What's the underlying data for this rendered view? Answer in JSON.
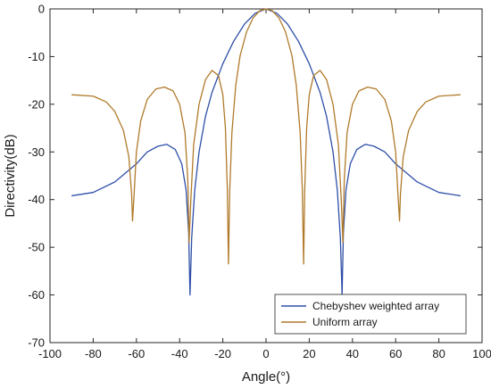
{
  "chart_data": {
    "type": "line",
    "title": "",
    "xlabel": "Angle(°)",
    "ylabel": "Directivity(dB)",
    "xlim": [
      -100,
      100
    ],
    "ylim": [
      -70,
      0
    ],
    "xticks": [
      -100,
      -80,
      -60,
      -40,
      -20,
      0,
      20,
      40,
      60,
      80,
      100
    ],
    "yticks": [
      0,
      -10,
      -20,
      -30,
      -40,
      -50,
      -60,
      -70
    ],
    "xtick_labels": [
      "-100",
      "-80",
      "-60",
      "-40",
      "-20",
      "0",
      "20",
      "40",
      "60",
      "80",
      "100"
    ],
    "ytick_labels": [
      "0",
      "-10",
      "-20",
      "-30",
      "-40",
      "-50",
      "-60",
      "-70"
    ],
    "grid": false,
    "legend_position": "bottom-right",
    "series": [
      {
        "name": "Chebyshev weighted array",
        "color": "#2e4fa8",
        "points": [
          [
            -90,
            -39.2
          ],
          [
            -80,
            -38.5
          ],
          [
            -70,
            -36.3
          ],
          [
            -60,
            -32.5
          ],
          [
            -55,
            -30.0
          ],
          [
            -50,
            -28.8
          ],
          [
            -46,
            -28.4
          ],
          [
            -42,
            -29.5
          ],
          [
            -39,
            -32.5
          ],
          [
            -37,
            -38.0
          ],
          [
            -35.8,
            -47.0
          ],
          [
            -35.2,
            -60.0
          ],
          [
            -34.4,
            -48.0
          ],
          [
            -33,
            -38.0
          ],
          [
            -31,
            -30.0
          ],
          [
            -28,
            -22.5
          ],
          [
            -25,
            -17.5
          ],
          [
            -20,
            -11.5
          ],
          [
            -15,
            -6.8
          ],
          [
            -10,
            -3.2
          ],
          [
            -5,
            -0.9
          ],
          [
            0,
            0
          ],
          [
            5,
            -0.9
          ],
          [
            10,
            -3.2
          ],
          [
            15,
            -6.8
          ],
          [
            20,
            -11.5
          ],
          [
            25,
            -17.5
          ],
          [
            28,
            -22.5
          ],
          [
            31,
            -30.0
          ],
          [
            33,
            -38.0
          ],
          [
            34.4,
            -48.0
          ],
          [
            35.2,
            -60.0
          ],
          [
            35.8,
            -47.0
          ],
          [
            37,
            -38.0
          ],
          [
            39,
            -32.5
          ],
          [
            42,
            -29.5
          ],
          [
            46,
            -28.4
          ],
          [
            50,
            -28.8
          ],
          [
            55,
            -30.0
          ],
          [
            60,
            -32.5
          ],
          [
            70,
            -36.3
          ],
          [
            80,
            -38.5
          ],
          [
            90,
            -39.2
          ]
        ]
      },
      {
        "name": "Uniform array",
        "color": "#b07a2a",
        "points": [
          [
            -90,
            -18.0
          ],
          [
            -80,
            -18.3
          ],
          [
            -74,
            -19.5
          ],
          [
            -70,
            -21.5
          ],
          [
            -66,
            -25.5
          ],
          [
            -63.5,
            -31.0
          ],
          [
            -62.2,
            -39.0
          ],
          [
            -61.8,
            -44.5
          ],
          [
            -61.2,
            -40.0
          ],
          [
            -60,
            -30.0
          ],
          [
            -58,
            -23.5
          ],
          [
            -55,
            -19.0
          ],
          [
            -51,
            -16.8
          ],
          [
            -47,
            -16.4
          ],
          [
            -43,
            -17.2
          ],
          [
            -40,
            -20.0
          ],
          [
            -37.5,
            -26.0
          ],
          [
            -36.2,
            -36.0
          ],
          [
            -35.6,
            -49.0
          ],
          [
            -34.8,
            -40.0
          ],
          [
            -33.5,
            -28.5
          ],
          [
            -31,
            -20.0
          ],
          [
            -28,
            -14.8
          ],
          [
            -25,
            -12.9
          ],
          [
            -22,
            -14.0
          ],
          [
            -20,
            -18.0
          ],
          [
            -18.8,
            -25.0
          ],
          [
            -17.9,
            -38.0
          ],
          [
            -17.4,
            -53.5
          ],
          [
            -16.8,
            -38.0
          ],
          [
            -15.8,
            -26.0
          ],
          [
            -14,
            -16.0
          ],
          [
            -12,
            -9.8
          ],
          [
            -9,
            -4.8
          ],
          [
            -6,
            -1.9
          ],
          [
            -3,
            -0.4
          ],
          [
            0,
            0
          ],
          [
            3,
            -0.4
          ],
          [
            6,
            -1.9
          ],
          [
            9,
            -4.8
          ],
          [
            12,
            -9.8
          ],
          [
            14,
            -16.0
          ],
          [
            15.8,
            -26.0
          ],
          [
            16.8,
            -38.0
          ],
          [
            17.4,
            -53.5
          ],
          [
            17.9,
            -38.0
          ],
          [
            18.8,
            -25.0
          ],
          [
            20,
            -18.0
          ],
          [
            22,
            -14.0
          ],
          [
            25,
            -12.9
          ],
          [
            28,
            -14.8
          ],
          [
            31,
            -20.0
          ],
          [
            33.5,
            -28.5
          ],
          [
            34.8,
            -40.0
          ],
          [
            35.6,
            -49.0
          ],
          [
            36.2,
            -36.0
          ],
          [
            37.5,
            -26.0
          ],
          [
            40,
            -20.0
          ],
          [
            43,
            -17.2
          ],
          [
            47,
            -16.4
          ],
          [
            51,
            -16.8
          ],
          [
            55,
            -19.0
          ],
          [
            58,
            -23.5
          ],
          [
            60,
            -30.0
          ],
          [
            61.2,
            -40.0
          ],
          [
            61.8,
            -44.5
          ],
          [
            62.2,
            -39.0
          ],
          [
            63.5,
            -31.0
          ],
          [
            66,
            -25.5
          ],
          [
            70,
            -21.5
          ],
          [
            74,
            -19.5
          ],
          [
            80,
            -18.3
          ],
          [
            90,
            -18.0
          ]
        ]
      }
    ]
  }
}
